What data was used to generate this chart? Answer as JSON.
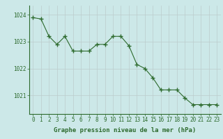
{
  "x": [
    0,
    1,
    2,
    3,
    4,
    5,
    6,
    7,
    8,
    9,
    10,
    11,
    12,
    13,
    14,
    15,
    16,
    17,
    18,
    19,
    20,
    21,
    22,
    23
  ],
  "y": [
    1023.9,
    1023.85,
    1023.2,
    1022.9,
    1023.2,
    1022.65,
    1022.65,
    1022.65,
    1022.9,
    1022.9,
    1023.2,
    1023.2,
    1022.85,
    1022.15,
    1022.0,
    1021.65,
    1021.2,
    1021.2,
    1021.2,
    1020.9,
    1020.65,
    1020.65,
    1020.65,
    1020.65
  ],
  "line_color": "#2d6a2d",
  "marker": "+",
  "marker_size": 4,
  "marker_linewidth": 1.0,
  "line_width": 0.8,
  "bg_color": "#cce8e8",
  "plot_bg_color": "#cce8e8",
  "grid_color": "#bbcccc",
  "xlabel": "Graphe pression niveau de la mer (hPa)",
  "yticks": [
    1021,
    1022,
    1023,
    1024
  ],
  "ylim": [
    1020.3,
    1024.35
  ],
  "xlim": [
    -0.5,
    23.5
  ],
  "xtick_labels": [
    "0",
    "1",
    "2",
    "3",
    "4",
    "5",
    "6",
    "7",
    "8",
    "9",
    "10",
    "11",
    "12",
    "13",
    "14",
    "15",
    "16",
    "17",
    "18",
    "19",
    "20",
    "21",
    "22",
    "23"
  ],
  "tick_color": "#2d6a2d",
  "tick_fontsize": 5.5,
  "xlabel_fontsize": 6.5,
  "xlabel_color": "#2d6a2d"
}
